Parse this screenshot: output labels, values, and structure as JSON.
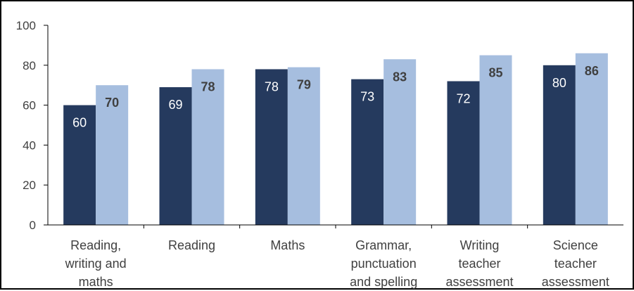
{
  "chart_data": {
    "type": "bar",
    "title": "",
    "xlabel": "",
    "ylabel": "",
    "ylim": [
      0,
      100
    ],
    "yticks": [
      "0",
      "20",
      "40",
      "60",
      "80",
      "100"
    ],
    "grid": false,
    "legend": "none",
    "categories": [
      [
        "Reading,",
        "writing and",
        "maths"
      ],
      [
        "Reading"
      ],
      [
        "Maths"
      ],
      [
        "Grammar,",
        "punctuation",
        "and spelling"
      ],
      [
        "Writing",
        "teacher",
        "assessment"
      ],
      [
        "Science",
        "teacher",
        "assessment"
      ]
    ],
    "series": [
      {
        "values": [
          60,
          69,
          78,
          73,
          72,
          80
        ],
        "color": "#253a5e",
        "label_color": "#ffffff",
        "label_weight": "normal"
      },
      {
        "values": [
          70,
          78,
          79,
          83,
          85,
          86
        ],
        "color": "#a6bedf",
        "label_color": "#404040",
        "label_weight": "bold"
      }
    ]
  },
  "colors": {
    "axis": "#000000",
    "tick_text": "#404040",
    "frame": "#000000"
  }
}
